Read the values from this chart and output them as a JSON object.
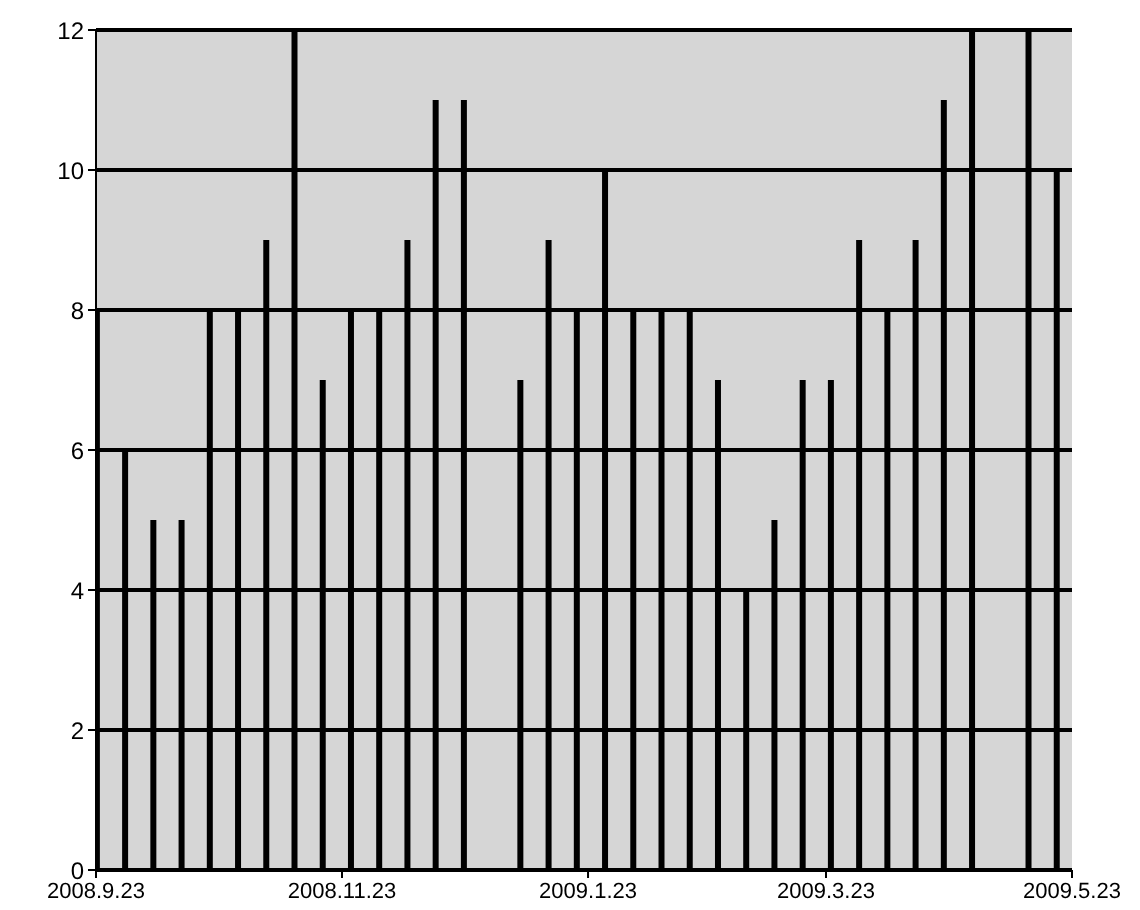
{
  "chart_data": {
    "type": "bar",
    "x": [
      "2008-09-23",
      "2008-09-30",
      "2008-10-07",
      "2008-10-14",
      "2008-10-21",
      "2008-10-28",
      "2008-11-04",
      "2008-11-11",
      "2008-11-18",
      "2008-11-25",
      "2008-12-02",
      "2008-12-09",
      "2008-12-16",
      "2008-12-23",
      "2009-01-06",
      "2009-01-13",
      "2009-01-20",
      "2009-01-27",
      "2009-02-03",
      "2009-02-10",
      "2009-02-17",
      "2009-02-24",
      "2009-03-03",
      "2009-03-10",
      "2009-03-17",
      "2009-03-24",
      "2009-03-31",
      "2009-04-07",
      "2009-04-14",
      "2009-04-21",
      "2009-04-28",
      "2009-05-12",
      "2009-05-19"
    ],
    "values": [
      8,
      6,
      5,
      5,
      8,
      8,
      9,
      12,
      7,
      8,
      8,
      9,
      11,
      11,
      7,
      9,
      8,
      10,
      8,
      8,
      8,
      7,
      4,
      5,
      7,
      7,
      9,
      8,
      9,
      11,
      12,
      12,
      10
    ],
    "color": "#000000",
    "xlim": [
      "2008-09-23",
      "2009-05-23"
    ],
    "xticks": [
      {
        "value": "2008-09-23",
        "label": "2008.9.23"
      },
      {
        "value": "2008-11-23",
        "label": "2008.11.23"
      },
      {
        "value": "2009-01-23",
        "label": "2009.1.23"
      },
      {
        "value": "2009-03-23",
        "label": "2009.3.23"
      },
      {
        "value": "2009-05-23",
        "label": "2009.5.23"
      }
    ],
    "ylim": [
      0,
      12
    ],
    "yticks": [
      0,
      2,
      4,
      6,
      8,
      10,
      12
    ],
    "grid": "y"
  }
}
